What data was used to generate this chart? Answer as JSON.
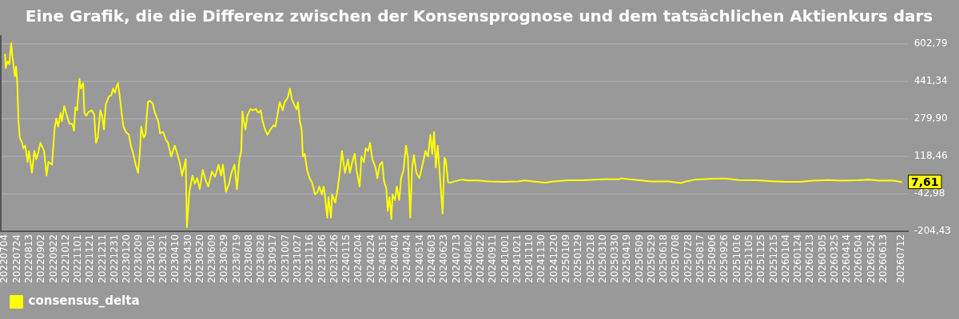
{
  "chart_data": {
    "type": "line",
    "title": "Eine Grafik, die die Differenz zwischen der Konsensprognose und dem tatsächlichen Aktienkurs dars",
    "x": [
      "2022-07-04",
      "2022-07-05",
      "2022-07-08",
      "2022-07-11",
      "2022-07-14",
      "2022-07-16",
      "2022-07-20",
      "2022-07-22",
      "2022-07-24",
      "2022-07-26",
      "2022-07-28",
      "2022-08-01",
      "2022-08-03",
      "2022-08-06",
      "2022-08-10",
      "2022-08-12",
      "2022-08-17",
      "2022-08-21",
      "2022-08-24",
      "2022-08-28",
      "2022-08-31",
      "2022-09-06",
      "2022-09-10",
      "2022-09-13",
      "2022-09-19",
      "2022-09-23",
      "2022-09-26",
      "2022-09-29",
      "2022-10-03",
      "2022-10-05",
      "2022-10-09",
      "2022-10-12",
      "2022-10-16",
      "2022-10-18",
      "2022-10-22",
      "2022-10-25",
      "2022-10-27",
      "2022-10-30",
      "2022-11-03",
      "2022-11-05",
      "2022-11-09",
      "2022-11-11",
      "2022-11-14",
      "2022-11-18",
      "2022-11-23",
      "2022-11-27",
      "2022-11-30",
      "2022-12-03",
      "2022-12-07",
      "2022-12-10",
      "2022-12-13",
      "2022-12-16",
      "2022-12-21",
      "2022-12-25",
      "2022-12-28",
      "2022-12-31",
      "2023-01-03",
      "2023-01-05",
      "2023-01-08",
      "2023-01-11",
      "2023-01-14",
      "2023-01-18",
      "2023-01-23",
      "2023-01-26",
      "2023-01-29",
      "2023-02-03",
      "2023-02-07",
      "2023-02-10",
      "2023-02-12",
      "2023-02-16",
      "2023-02-19",
      "2023-02-23",
      "2023-02-26",
      "2023-03-03",
      "2023-03-06",
      "2023-03-12",
      "2023-03-15",
      "2023-03-20",
      "2023-03-24",
      "2023-03-28",
      "2023-04-02",
      "2023-04-08",
      "2023-04-11",
      "2023-04-16",
      "2023-04-20",
      "2023-04-26",
      "2023-04-28",
      "2023-05-02",
      "2023-05-07",
      "2023-05-11",
      "2023-05-15",
      "2023-05-19",
      "2023-05-24",
      "2023-05-29",
      "2023-06-02",
      "2023-06-08",
      "2023-06-13",
      "2023-06-19",
      "2023-06-23",
      "2023-06-26",
      "2023-07-01",
      "2023-07-06",
      "2023-07-10",
      "2023-07-15",
      "2023-07-19",
      "2023-07-23",
      "2023-07-26",
      "2023-07-28",
      "2023-07-30",
      "2023-08-02",
      "2023-08-05",
      "2023-08-10",
      "2023-08-14",
      "2023-08-19",
      "2023-08-23",
      "2023-08-27",
      "2023-08-30",
      "2023-09-03",
      "2023-09-07",
      "2023-09-12",
      "2023-09-17",
      "2023-09-20",
      "2023-09-24",
      "2023-09-27",
      "2023-10-02",
      "2023-10-05",
      "2023-10-10",
      "2023-10-14",
      "2023-10-17",
      "2023-10-21",
      "2023-10-25",
      "2023-10-27",
      "2023-10-30",
      "2023-11-02",
      "2023-11-04",
      "2023-11-07",
      "2023-11-11",
      "2023-11-15",
      "2023-11-19",
      "2023-11-24",
      "2023-11-28",
      "2023-12-01",
      "2023-12-05",
      "2023-12-08",
      "2023-12-10",
      "2023-12-14",
      "2023-12-16",
      "2023-12-20",
      "2023-12-22",
      "2023-12-27",
      "2023-12-31",
      "2024-01-04",
      "2024-01-07",
      "2024-01-12",
      "2024-01-17",
      "2024-01-20",
      "2024-01-24",
      "2024-01-28",
      "2024-01-31",
      "2024-02-05",
      "2024-02-08",
      "2024-02-12",
      "2024-02-15",
      "2024-02-19",
      "2024-02-22",
      "2024-02-26",
      "2024-03-02",
      "2024-03-05",
      "2024-03-09",
      "2024-03-13",
      "2024-03-16",
      "2024-03-20",
      "2024-03-22",
      "2024-03-25",
      "2024-03-28",
      "2024-03-30",
      "2024-04-03",
      "2024-04-06",
      "2024-04-10",
      "2024-04-13",
      "2024-04-17",
      "2024-04-21",
      "2024-04-24",
      "2024-04-28",
      "2024-05-01",
      "2024-05-04",
      "2024-05-08",
      "2024-05-13",
      "2024-05-18",
      "2024-05-23",
      "2024-05-27",
      "2024-05-31",
      "2024-06-03",
      "2024-06-06",
      "2024-06-09",
      "2024-06-12",
      "2024-06-16",
      "2024-06-20",
      "2024-06-23",
      "2024-06-25",
      "2024-06-29",
      "2024-07-05",
      "2024-07-12",
      "2024-07-22",
      "2024-08-01",
      "2024-08-16",
      "2024-09-04",
      "2024-09-28",
      "2024-10-22",
      "2024-11-01",
      "2024-11-15",
      "2024-12-05",
      "2024-12-19",
      "2025-01-12",
      "2025-02-05",
      "2025-02-25",
      "2025-03-12",
      "2025-04-04",
      "2025-04-09",
      "2025-04-28",
      "2025-05-27",
      "2025-06-25",
      "2025-07-15",
      "2025-07-24",
      "2025-08-08",
      "2025-09-01",
      "2025-09-25",
      "2025-10-19",
      "2025-11-17",
      "2025-12-11",
      "2026-01-04",
      "2026-01-28",
      "2026-02-17",
      "2026-03-13",
      "2026-04-06",
      "2026-04-30",
      "2026-05-19",
      "2026-06-07",
      "2026-06-27",
      "2026-07-12"
    ],
    "series": [
      {
        "name": "consensus_delta",
        "color": "#ffff00",
        "values": [
          556,
          498,
          527,
          515,
          605,
          550,
          463,
          504,
          433,
          269,
          199,
          176,
          152,
          164,
          94,
          141,
          47,
          141,
          105,
          141,
          176,
          141,
          35,
          94,
          82,
          234,
          281,
          246,
          305,
          269,
          334,
          305,
          269,
          258,
          258,
          228,
          328,
          316,
          451,
          410,
          433,
          305,
          293,
          310,
          316,
          299,
          176,
          199,
          316,
          293,
          234,
          340,
          375,
          381,
          410,
          392,
          421,
          433,
          375,
          305,
          246,
          223,
          211,
          164,
          141,
          82,
          47,
          141,
          246,
          199,
          211,
          351,
          357,
          346,
          310,
          269,
          217,
          223,
          193,
          176,
          117,
          164,
          141,
          94,
          35,
          105,
          -187,
          -35,
          35,
          0,
          24,
          -23,
          59,
          12,
          -12,
          53,
          30,
          82,
          35,
          82,
          -35,
          0,
          47,
          82,
          -23,
          105,
          141,
          310,
          269,
          234,
          293,
          322,
          316,
          322,
          305,
          316,
          269,
          234,
          211,
          234,
          252,
          246,
          305,
          351,
          316,
          351,
          369,
          410,
          363,
          340,
          320,
          351,
          269,
          234,
          117,
          129,
          59,
          24,
          6,
          -46,
          -35,
          -12,
          -46,
          -12,
          -46,
          -146,
          -58,
          -146,
          -46,
          -82,
          -23,
          59,
          141,
          47,
          105,
          47,
          94,
          129,
          59,
          -12,
          117,
          94,
          152,
          141,
          176,
          105,
          70,
          24,
          82,
          94,
          12,
          -23,
          -117,
          -58,
          -152,
          -46,
          -70,
          -12,
          -70,
          24,
          59,
          164,
          117,
          -146,
          70,
          123,
          47,
          24,
          82,
          141,
          117,
          211,
          129,
          223,
          70,
          164,
          18,
          -128,
          111,
          105,
          6,
          6,
          12,
          18,
          14,
          14,
          10,
          8,
          10,
          14,
          10,
          5,
          10,
          15,
          15,
          18,
          19,
          19,
          23,
          18,
          10,
          10,
          3,
          10,
          18,
          21,
          23,
          16,
          15,
          11,
          8,
          8,
          13,
          16,
          13,
          15,
          18,
          13,
          14,
          7.61
        ]
      }
    ],
    "xlim": [
      "2022-06-27",
      "2026-07-22"
    ],
    "xticks": [
      {
        "value": "2022-07-04",
        "label": "20220704"
      },
      {
        "value": "2022-07-24",
        "label": "20220724"
      },
      {
        "value": "2022-08-13",
        "label": "20220813"
      },
      {
        "value": "2022-09-02",
        "label": "20220902"
      },
      {
        "value": "2022-09-22",
        "label": "20220922"
      },
      {
        "value": "2022-10-12",
        "label": "20221012"
      },
      {
        "value": "2022-11-01",
        "label": "20221101"
      },
      {
        "value": "2022-11-21",
        "label": "20221121"
      },
      {
        "value": "2022-12-11",
        "label": "20221211"
      },
      {
        "value": "2022-12-31",
        "label": "20221231"
      },
      {
        "value": "2023-01-20",
        "label": "20230120"
      },
      {
        "value": "2023-02-09",
        "label": "20230209"
      },
      {
        "value": "2023-03-01",
        "label": "20230301"
      },
      {
        "value": "2023-03-21",
        "label": "20230321"
      },
      {
        "value": "2023-04-10",
        "label": "20230410"
      },
      {
        "value": "2023-04-30",
        "label": "20230430"
      },
      {
        "value": "2023-05-20",
        "label": "20230520"
      },
      {
        "value": "2023-06-09",
        "label": "20230609"
      },
      {
        "value": "2023-06-29",
        "label": "20230629"
      },
      {
        "value": "2023-07-19",
        "label": "20230719"
      },
      {
        "value": "2023-08-08",
        "label": "20230808"
      },
      {
        "value": "2023-08-28",
        "label": "20230828"
      },
      {
        "value": "2023-09-17",
        "label": "20230917"
      },
      {
        "value": "2023-10-07",
        "label": "20231007"
      },
      {
        "value": "2023-10-27",
        "label": "20231027"
      },
      {
        "value": "2023-11-16",
        "label": "20231116"
      },
      {
        "value": "2023-12-06",
        "label": "20231206"
      },
      {
        "value": "2023-12-26",
        "label": "20231226"
      },
      {
        "value": "2024-01-15",
        "label": "20240115"
      },
      {
        "value": "2024-02-04",
        "label": "20240204"
      },
      {
        "value": "2024-02-24",
        "label": "20240224"
      },
      {
        "value": "2024-03-15",
        "label": "20240315"
      },
      {
        "value": "2024-04-04",
        "label": "20240404"
      },
      {
        "value": "2024-04-24",
        "label": "20240424"
      },
      {
        "value": "2024-05-14",
        "label": "20240514"
      },
      {
        "value": "2024-06-03",
        "label": "20240603"
      },
      {
        "value": "2024-06-23",
        "label": "20240623"
      },
      {
        "value": "2024-07-13",
        "label": "20240713"
      },
      {
        "value": "2024-08-02",
        "label": "20240802"
      },
      {
        "value": "2024-08-22",
        "label": "20240822"
      },
      {
        "value": "2024-09-11",
        "label": "20240911"
      },
      {
        "value": "2024-10-01",
        "label": "20241001"
      },
      {
        "value": "2024-10-21",
        "label": "20241021"
      },
      {
        "value": "2024-11-10",
        "label": "20241110"
      },
      {
        "value": "2024-11-30",
        "label": "20241130"
      },
      {
        "value": "2024-12-20",
        "label": "20241220"
      },
      {
        "value": "2025-01-09",
        "label": "20250109"
      },
      {
        "value": "2025-01-29",
        "label": "20250129"
      },
      {
        "value": "2025-02-18",
        "label": "20250218"
      },
      {
        "value": "2025-03-10",
        "label": "20250310"
      },
      {
        "value": "2025-03-30",
        "label": "20250330"
      },
      {
        "value": "2025-04-19",
        "label": "20250419"
      },
      {
        "value": "2025-05-09",
        "label": "20250509"
      },
      {
        "value": "2025-05-29",
        "label": "20250529"
      },
      {
        "value": "2025-06-18",
        "label": "20250618"
      },
      {
        "value": "2025-07-08",
        "label": "20250708"
      },
      {
        "value": "2025-07-28",
        "label": "20250728"
      },
      {
        "value": "2025-08-17",
        "label": "20250817"
      },
      {
        "value": "2025-09-06",
        "label": "20250906"
      },
      {
        "value": "2025-09-26",
        "label": "20250926"
      },
      {
        "value": "2025-10-16",
        "label": "20251016"
      },
      {
        "value": "2025-11-05",
        "label": "20251105"
      },
      {
        "value": "2025-11-25",
        "label": "20251125"
      },
      {
        "value": "2025-12-15",
        "label": "20251215"
      },
      {
        "value": "2026-01-04",
        "label": "20260104"
      },
      {
        "value": "2026-01-24",
        "label": "20260124"
      },
      {
        "value": "2026-02-13",
        "label": "20260213"
      },
      {
        "value": "2026-03-05",
        "label": "20260305"
      },
      {
        "value": "2026-03-25",
        "label": "20260325"
      },
      {
        "value": "2026-04-14",
        "label": "20260414"
      },
      {
        "value": "2026-05-04",
        "label": "20260504"
      },
      {
        "value": "2026-05-24",
        "label": "20260524"
      },
      {
        "value": "2026-06-13",
        "label": "20260613"
      },
      {
        "value": "2026-07-12",
        "label": "20260712"
      }
    ],
    "ylim": [
      -204.43,
      640
    ],
    "yticks": [
      {
        "value": -204.43,
        "label": "-204,43"
      },
      {
        "value": -42.98,
        "label": "-42,98"
      },
      {
        "value": 118.46,
        "label": "118,46"
      },
      {
        "value": 279.9,
        "label": "279,90"
      },
      {
        "value": 441.34,
        "label": "441,34"
      },
      {
        "value": 602.79,
        "label": "602,79"
      }
    ],
    "annotations": [
      {
        "text": "7,61",
        "x": "2026-07-12",
        "y": 7.61
      }
    ],
    "grid": "y",
    "legend": "bottom left",
    "marker": "none",
    "line_style": "solid"
  }
}
